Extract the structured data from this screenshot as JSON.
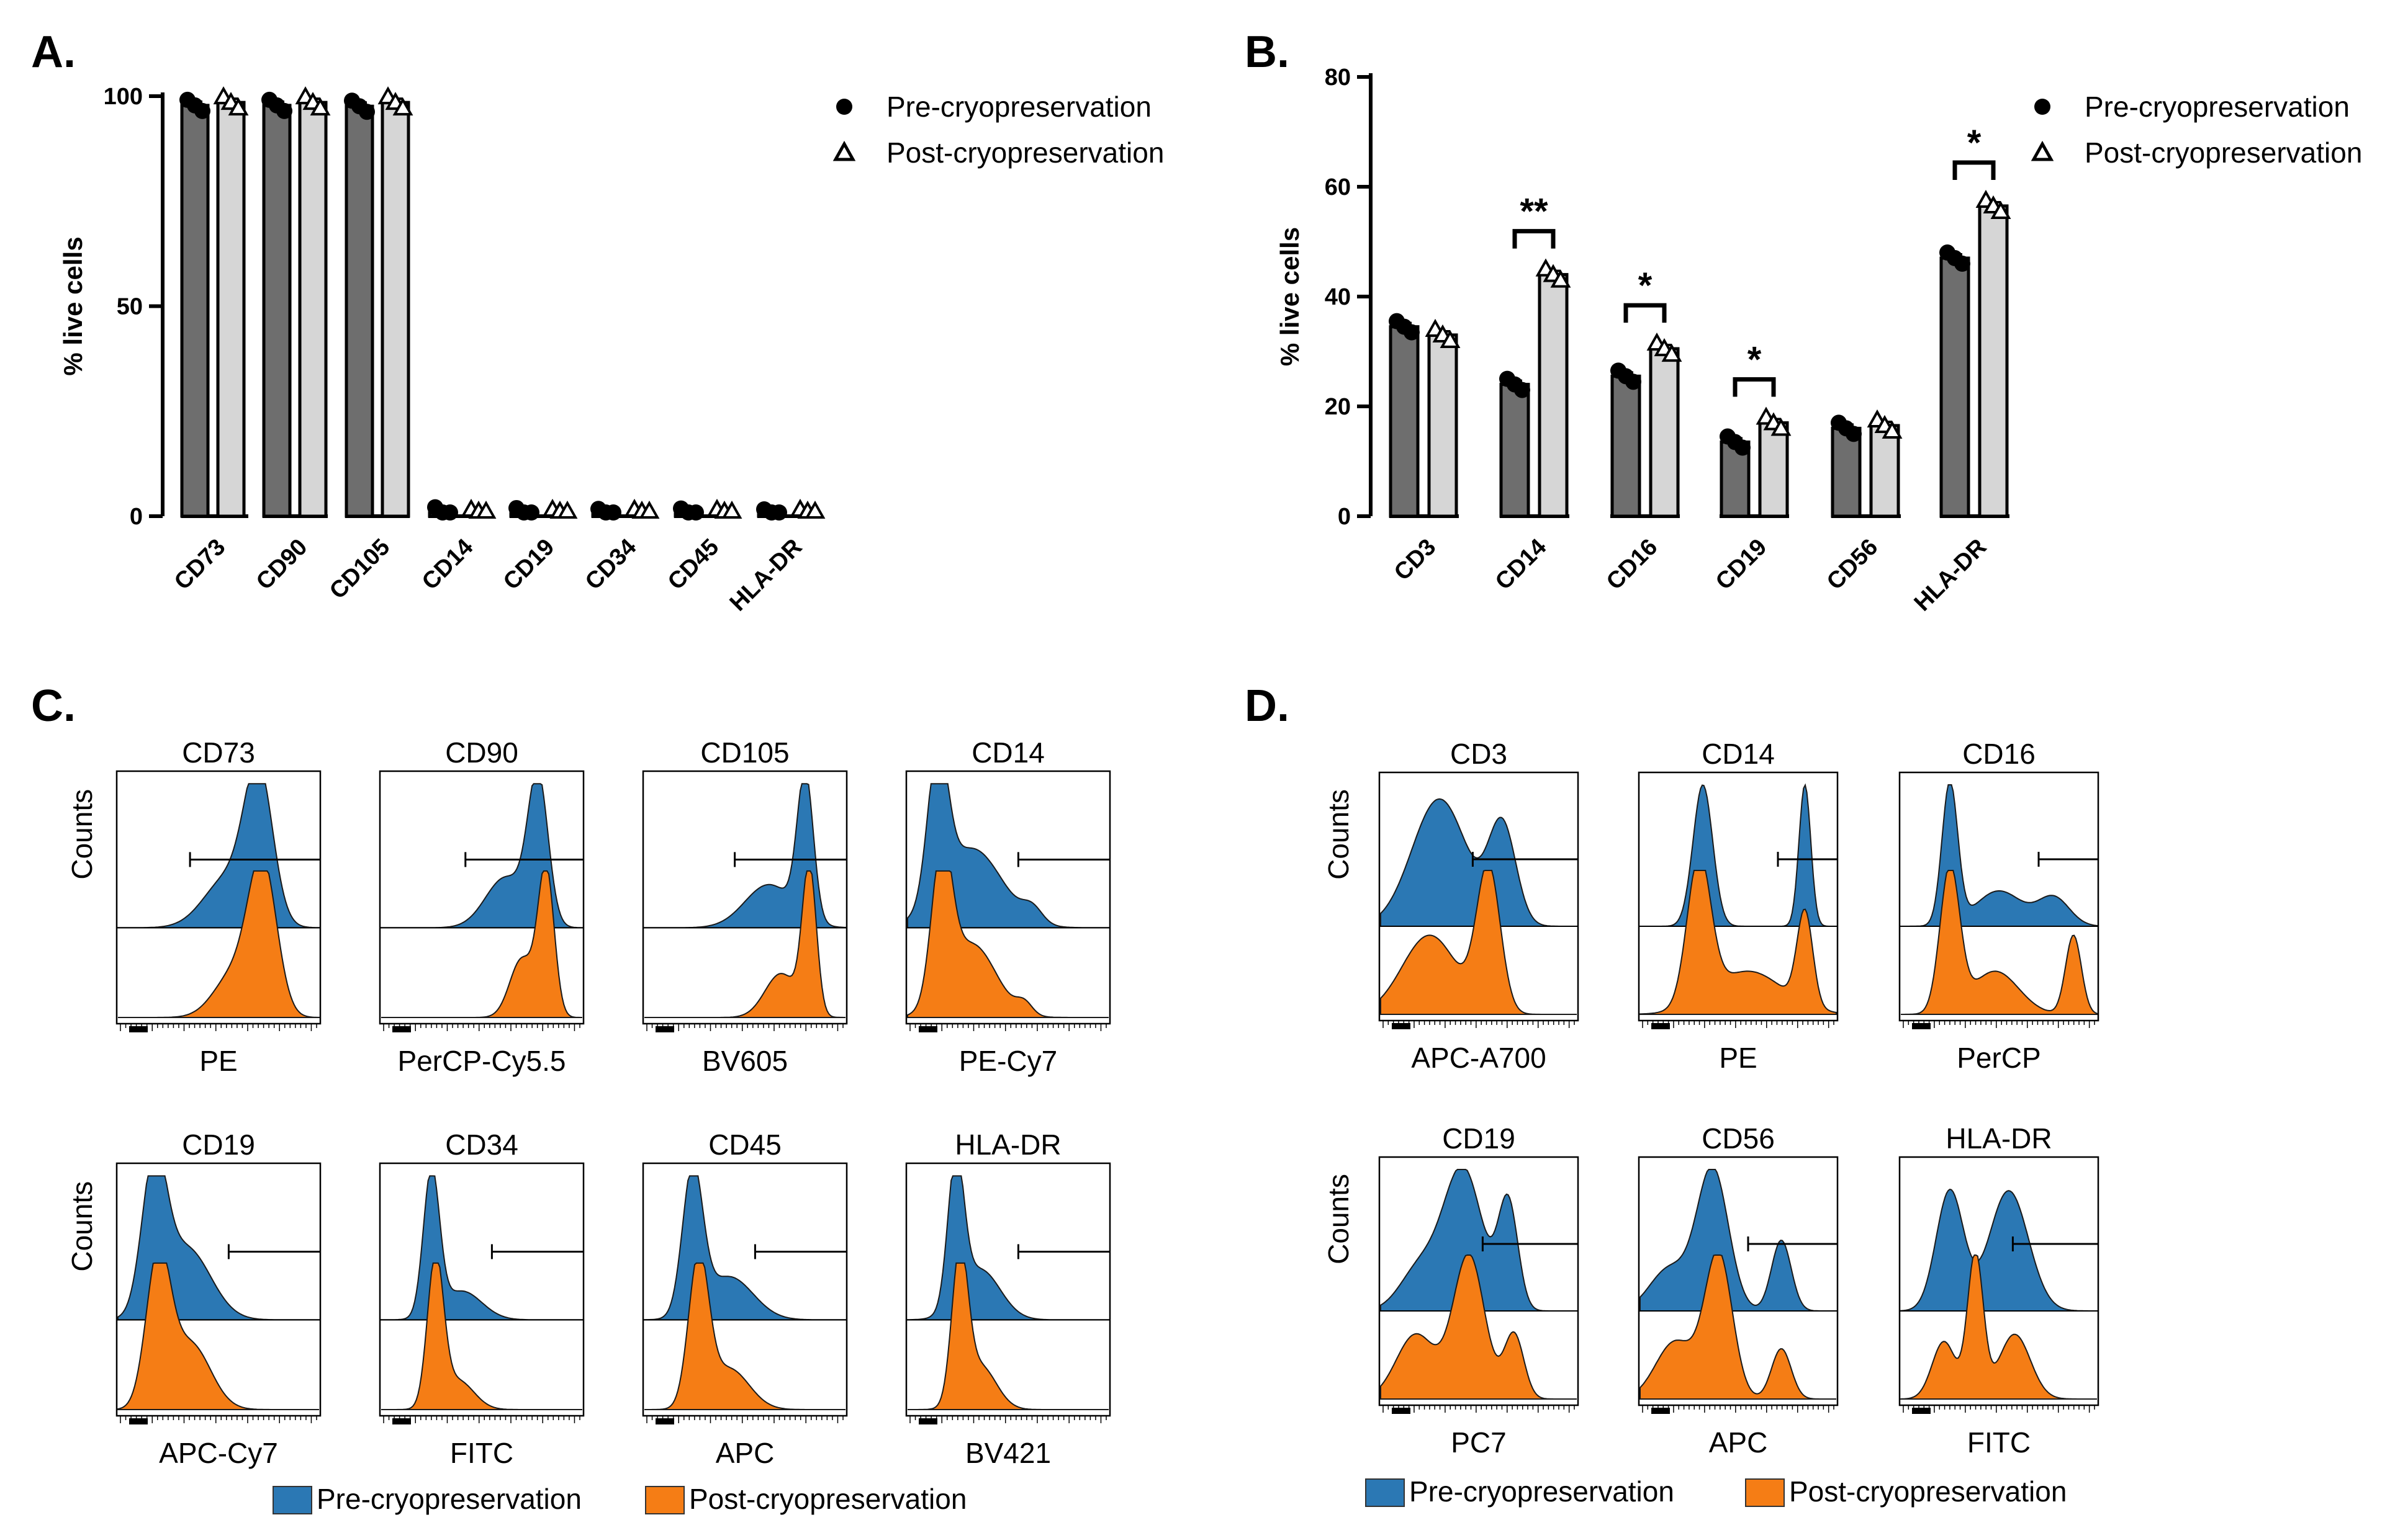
{
  "panels": {
    "a": "A.",
    "b": "B.",
    "c": "C.",
    "d": "D."
  },
  "series_names": [
    "Pre-cryopreservation",
    "Post-cryopreservation"
  ],
  "colors": {
    "pre_bar": "#6e6e6e",
    "post_bar": "#d6d6d6",
    "hist_pre": "#2b78b4",
    "hist_post": "#f57d15"
  },
  "chart_data": [
    {
      "type": "bar",
      "panel": "A.",
      "ylabel": "% live cells",
      "ylim": [
        0,
        100
      ],
      "yticks": [
        0,
        50,
        100
      ],
      "categories": [
        "CD73",
        "CD90",
        "CD105",
        "CD14",
        "CD19",
        "CD34",
        "CD45",
        "HLA-DR"
      ],
      "series": [
        {
          "name": "Pre-cryopreservation",
          "values": [
            97.8,
            97.8,
            97.6,
            0.8,
            0.6,
            0.4,
            0.5,
            0.2
          ]
        },
        {
          "name": "Post-cryopreservation",
          "values": [
            98.5,
            98.5,
            98.5,
            0.3,
            0.2,
            0.2,
            0.1,
            0.1
          ]
        }
      ],
      "legend": "top-right",
      "significance": []
    },
    {
      "type": "bar",
      "panel": "B.",
      "ylabel": "% live cells",
      "ylim": [
        0,
        80
      ],
      "yticks": [
        0,
        20,
        40,
        60,
        80
      ],
      "categories": [
        "CD3",
        "CD14",
        "CD16",
        "CD19",
        "CD56",
        "HLA-DR"
      ],
      "series": [
        {
          "name": "Pre-cryopreservation",
          "values": [
            34.5,
            24,
            25.5,
            13.5,
            16,
            47
          ]
        },
        {
          "name": "Post-cryopreservation",
          "values": [
            33,
            44,
            30.5,
            17,
            16.5,
            56.5
          ]
        }
      ],
      "legend": "top-right",
      "significance": [
        {
          "category": "CD14",
          "label": "**"
        },
        {
          "category": "CD16",
          "label": "*"
        },
        {
          "category": "CD19",
          "label": "*"
        },
        {
          "category": "HLA-DR",
          "label": "*"
        }
      ]
    }
  ],
  "histograms_c": [
    {
      "title": "CD73",
      "xlabel": "PE"
    },
    {
      "title": "CD90",
      "xlabel": "PerCP-Cy5.5"
    },
    {
      "title": "CD105",
      "xlabel": "BV605"
    },
    {
      "title": "CD14",
      "xlabel": "PE-Cy7"
    },
    {
      "title": "CD19",
      "xlabel": "APC-Cy7"
    },
    {
      "title": "CD34",
      "xlabel": "FITC"
    },
    {
      "title": "CD45",
      "xlabel": "APC"
    },
    {
      "title": "HLA-DR",
      "xlabel": "BV421"
    }
  ],
  "histograms_d": [
    {
      "title": "CD3",
      "xlabel": "APC-A700"
    },
    {
      "title": "CD14",
      "xlabel": "PE"
    },
    {
      "title": "CD16",
      "xlabel": "PerCP"
    },
    {
      "title": "CD19",
      "xlabel": "PC7"
    },
    {
      "title": "CD56",
      "xlabel": "APC"
    },
    {
      "title": "HLA-DR",
      "xlabel": "FITC"
    }
  ],
  "hist_ylabel": "Counts"
}
